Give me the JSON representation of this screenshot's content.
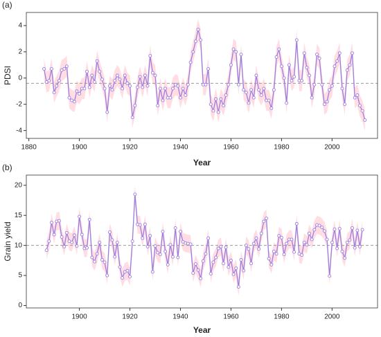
{
  "chart_data": [
    {
      "type": "line",
      "title": "(a)",
      "ylabel": "PDSI",
      "xlabel": "Year",
      "x": [
        1886,
        1887,
        1888,
        1889,
        1890,
        1891,
        1892,
        1893,
        1894,
        1895,
        1896,
        1897,
        1898,
        1899,
        1900,
        1901,
        1902,
        1903,
        1904,
        1905,
        1906,
        1907,
        1908,
        1909,
        1910,
        1911,
        1912,
        1913,
        1914,
        1915,
        1916,
        1917,
        1918,
        1919,
        1920,
        1921,
        1922,
        1923,
        1924,
        1925,
        1926,
        1927,
        1928,
        1929,
        1930,
        1931,
        1932,
        1933,
        1934,
        1935,
        1936,
        1937,
        1938,
        1939,
        1940,
        1941,
        1942,
        1943,
        1944,
        1945,
        1946,
        1947,
        1948,
        1949,
        1950,
        1951,
        1952,
        1953,
        1954,
        1955,
        1956,
        1957,
        1958,
        1959,
        1960,
        1961,
        1962,
        1963,
        1964,
        1965,
        1966,
        1967,
        1968,
        1969,
        1970,
        1971,
        1972,
        1973,
        1974,
        1975,
        1976,
        1977,
        1978,
        1979,
        1980,
        1981,
        1982,
        1983,
        1984,
        1985,
        1986,
        1987,
        1988,
        1989,
        1990,
        1991,
        1992,
        1993,
        1994,
        1995,
        1996,
        1997,
        1998,
        1999,
        2000,
        2001,
        2002,
        2003,
        2004,
        2005,
        2006,
        2007,
        2008,
        2009,
        2010,
        2011,
        2012,
        2013
      ],
      "values": [
        0.7,
        -0.3,
        -0.2,
        0.7,
        -1.1,
        -0.6,
        -0.2,
        0.6,
        0.7,
        0.9,
        -1.5,
        -1.7,
        -1.8,
        -1.0,
        -1.2,
        -0.8,
        -0.8,
        0.5,
        -0.7,
        0.2,
        -0.3,
        1.3,
        0.5,
        -0.1,
        -0.8,
        -2.6,
        -0.6,
        -0.9,
        -0.2,
        0.2,
        -0.1,
        -0.8,
        0.2,
        -0.4,
        -0.6,
        -3.0,
        -2.1,
        -0.7,
        0.1,
        -0.7,
        0.2,
        -0.6,
        1.7,
        0.4,
        0.2,
        -2.1,
        -0.8,
        -1.7,
        -0.8,
        -1.5,
        -1.5,
        -0.8,
        -0.5,
        -0.6,
        -1.5,
        -0.8,
        -1.3,
        -0.5,
        1.2,
        2.0,
        2.8,
        3.7,
        2.9,
        -0.5,
        -0.5,
        0.7,
        -2.0,
        -2.5,
        -1.6,
        -2.6,
        -1.6,
        -2.1,
        -1.3,
        -0.5,
        1.0,
        2.2,
        2.0,
        -0.5,
        1.8,
        -0.9,
        -1.1,
        -1.9,
        -0.9,
        -1.5,
        0.2,
        -0.9,
        -1.3,
        -0.8,
        -1.7,
        -1.7,
        -2.3,
        -0.9,
        1.6,
        2.2,
        0.9,
        0.0,
        -1.9,
        1.0,
        -0.2,
        0.1,
        2.9,
        -0.2,
        -0.2,
        1.9,
        0.8,
        0.2,
        -1.5,
        -0.5,
        1.8,
        1.5,
        -0.5,
        -2.0,
        -1.8,
        -0.9,
        -0.6,
        0.9,
        1.3,
        1.9,
        -0.8,
        -2.0,
        0.6,
        1.0,
        1.9,
        -1.5,
        -1.3,
        -2.1,
        -2.5,
        -3.2
      ],
      "color": "#9b7ee0",
      "band_color": "#ffdde2",
      "band_halfwidth": 0.8,
      "reference_line": -0.4,
      "xlim": [
        1879,
        2018
      ],
      "xticks": [
        1880,
        1900,
        1920,
        1940,
        1960,
        1980,
        2000
      ],
      "ylim": [
        -4.6,
        5
      ],
      "yticks": [
        -4,
        -2,
        0,
        2,
        4
      ]
    },
    {
      "type": "line",
      "title": "(b)",
      "ylabel": "Grain yield",
      "xlabel": "Year",
      "x": [
        1887,
        1888,
        1889,
        1890,
        1891,
        1892,
        1893,
        1894,
        1895,
        1896,
        1897,
        1898,
        1899,
        1900,
        1901,
        1902,
        1903,
        1904,
        1905,
        1906,
        1907,
        1908,
        1909,
        1910,
        1911,
        1912,
        1913,
        1914,
        1915,
        1916,
        1917,
        1918,
        1919,
        1920,
        1921,
        1922,
        1923,
        1924,
        1925,
        1926,
        1927,
        1928,
        1929,
        1930,
        1931,
        1932,
        1933,
        1934,
        1935,
        1936,
        1937,
        1938,
        1939,
        1940,
        1941,
        1942,
        1943,
        1944,
        1945,
        1946,
        1947,
        1948,
        1949,
        1950,
        1951,
        1952,
        1953,
        1954,
        1955,
        1956,
        1957,
        1958,
        1959,
        1960,
        1961,
        1962,
        1963,
        1964,
        1965,
        1966,
        1967,
        1968,
        1969,
        1970,
        1971,
        1972,
        1973,
        1974,
        1975,
        1976,
        1977,
        1978,
        1979,
        1980,
        1981,
        1982,
        1983,
        1984,
        1985,
        1986,
        1987,
        1988,
        1989,
        1990,
        1991,
        1992,
        1993,
        1994,
        1995,
        1996,
        1997,
        1998,
        1999,
        2000,
        2001,
        2002,
        2003,
        2004,
        2005,
        2006,
        2007,
        2008,
        2009,
        2010,
        2011,
        2012
      ],
      "values": [
        9.2,
        10.7,
        13.8,
        11.8,
        14.0,
        14.1,
        11.4,
        9.8,
        12.1,
        10.7,
        10.5,
        11.7,
        9.9,
        14.8,
        11.8,
        9.5,
        9.6,
        14.3,
        8.0,
        7.3,
        8.6,
        10.5,
        7.6,
        7.2,
        5.0,
        12.2,
        10.9,
        8.1,
        10.5,
        6.4,
        4.6,
        5.6,
        5.8,
        4.8,
        10.7,
        18.5,
        13.5,
        13.4,
        11.2,
        13.5,
        9.8,
        11.6,
        5.6,
        9.9,
        8.8,
        8.5,
        12.3,
        9.0,
        6.8,
        10.1,
        8.1,
        12.9,
        8.0,
        12.3,
        10.6,
        10.4,
        10.3,
        10.2,
        5.4,
        6.9,
        5.9,
        4.5,
        7.4,
        8.6,
        11.2,
        5.3,
        7.2,
        8.0,
        9.5,
        9.8,
        7.0,
        9.7,
        6.4,
        7.5,
        5.2,
        6.2,
        3.1,
        7.6,
        5.8,
        10.0,
        9.4,
        7.0,
        10.3,
        11.2,
        9.4,
        12.0,
        14.0,
        14.5,
        7.8,
        6.8,
        9.0,
        8.6,
        11.6,
        11.3,
        8.5,
        10.3,
        11.0,
        11.0,
        8.9,
        13.6,
        8.6,
        8.4,
        10.5,
        10.1,
        12.0,
        11.0,
        12.6,
        13.4,
        13.3,
        13.0,
        12.4,
        11.0,
        4.9,
        10.5,
        12.7,
        9.5,
        12.8,
        9.0,
        7.9,
        10.5,
        10.9,
        12.9,
        9.6,
        12.5,
        9.8,
        12.6
      ],
      "color": "#9b7ee0",
      "band_color": "#ffdde2",
      "band_halfwidth": 1.5,
      "reference_line": 10,
      "xlim": [
        1879,
        2018
      ],
      "xticks": [
        1900,
        1920,
        1940,
        1960,
        1980,
        2000
      ],
      "ylim": [
        -0.4,
        21.7
      ],
      "yticks": [
        0,
        5,
        10,
        15,
        20
      ]
    }
  ]
}
